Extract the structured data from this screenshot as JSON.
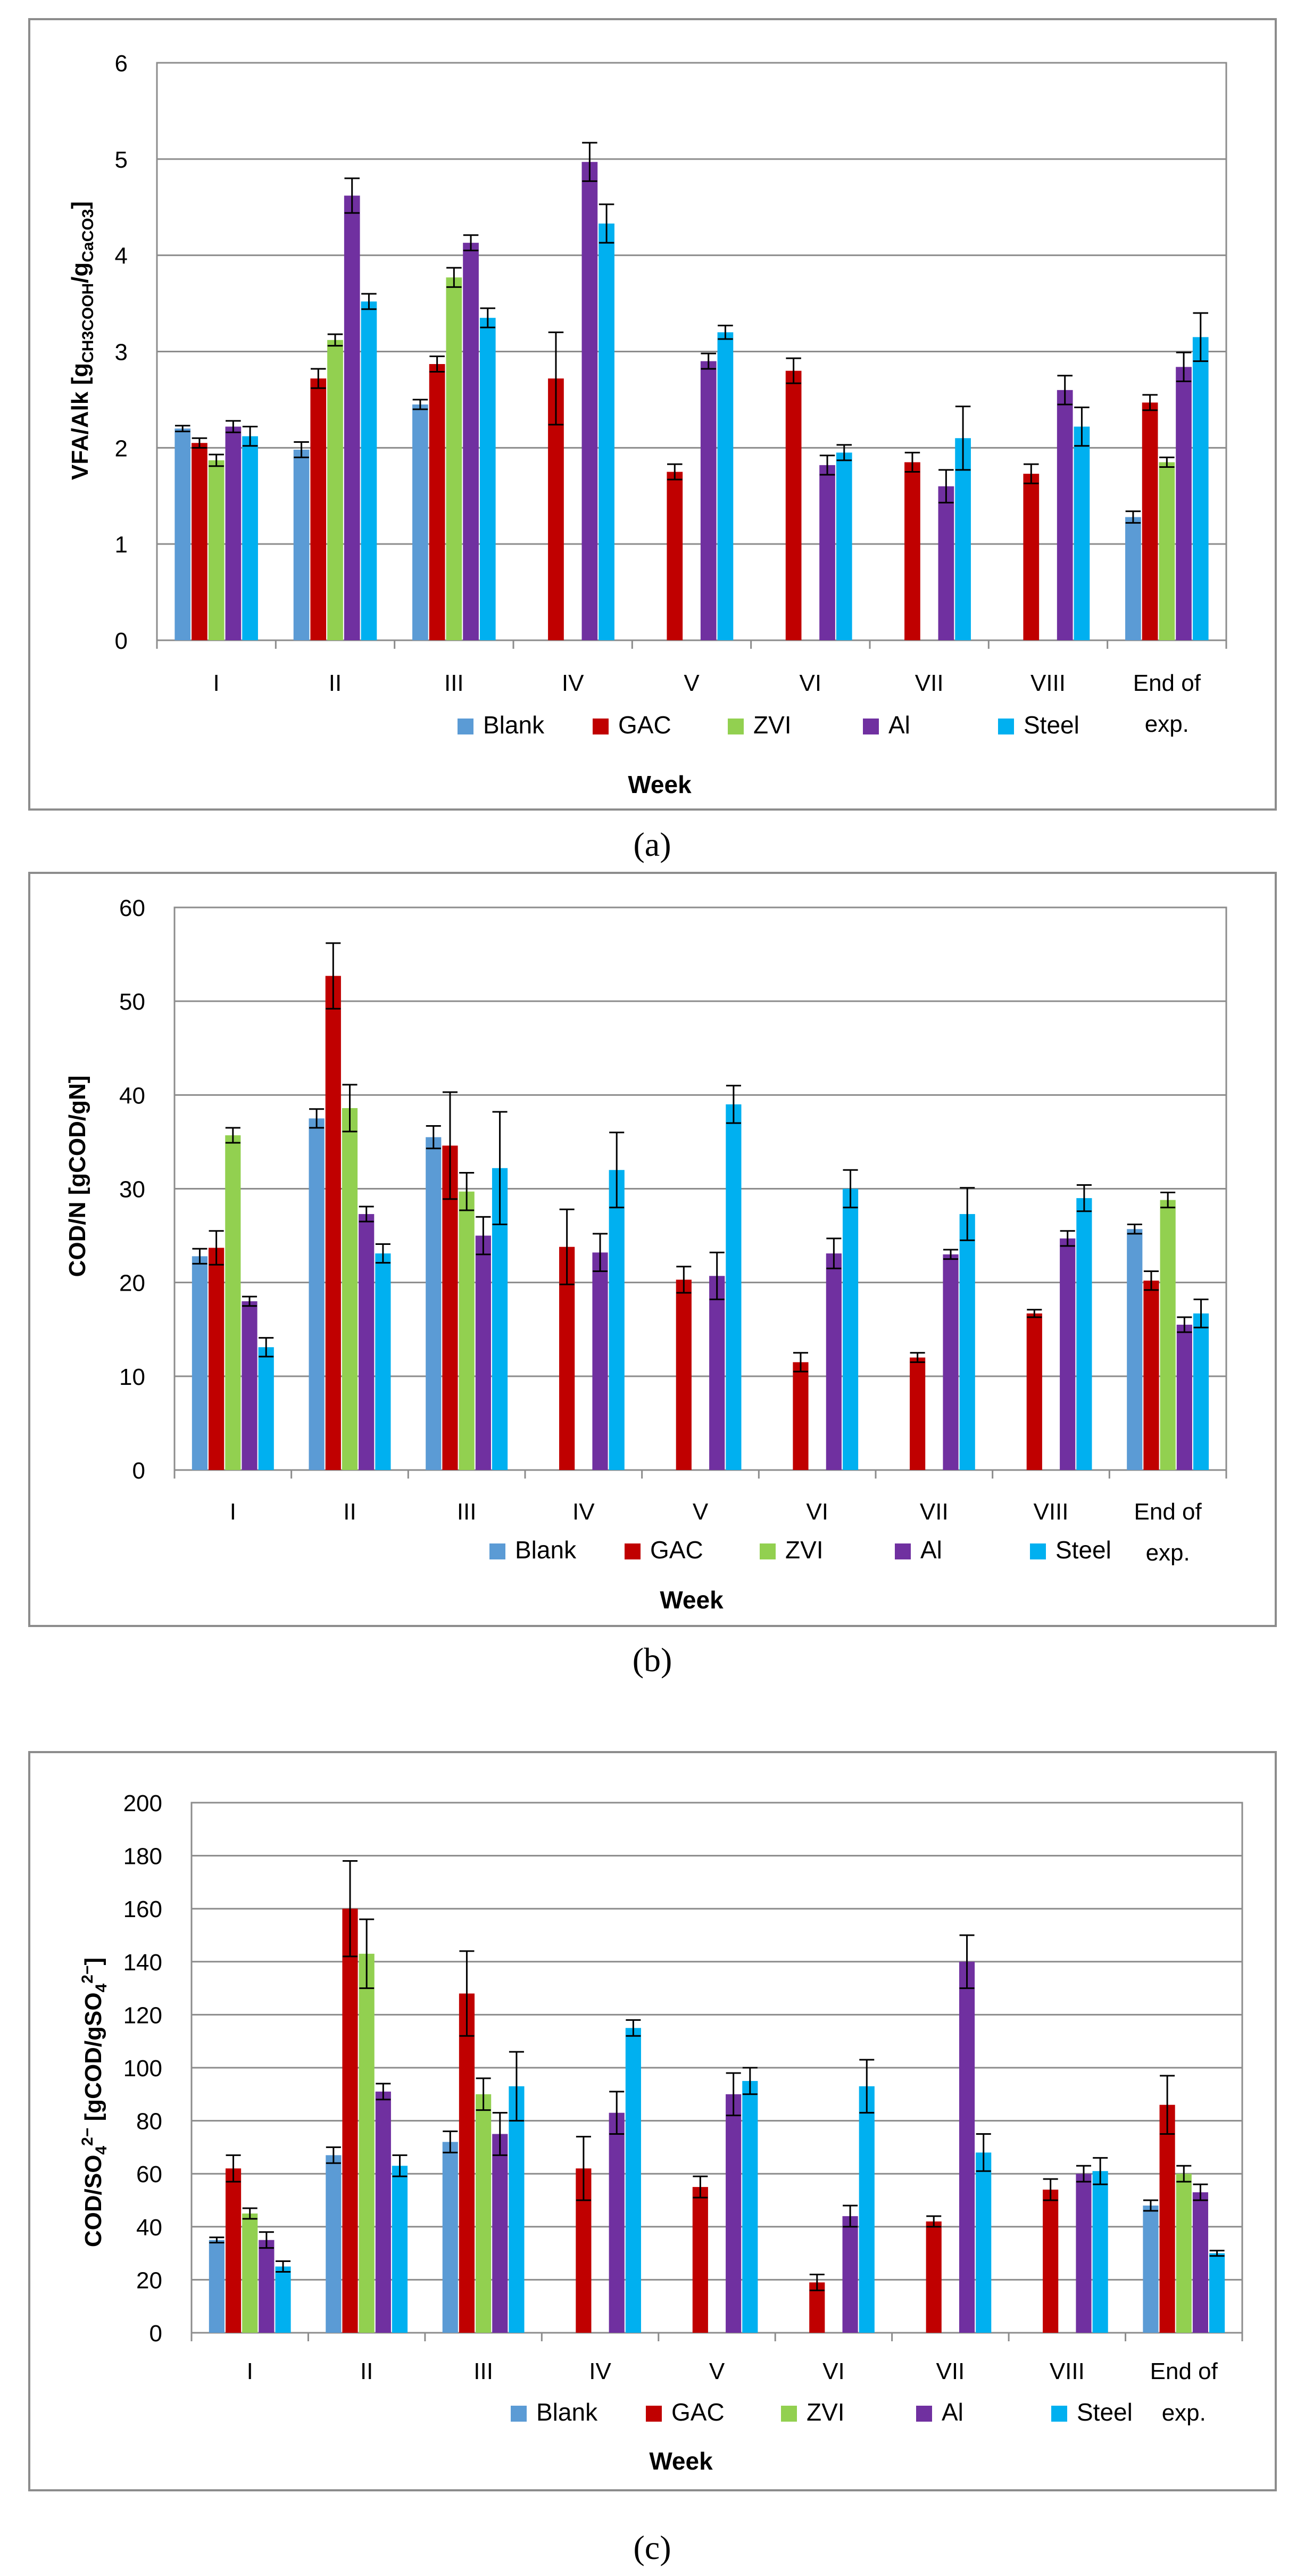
{
  "colors": {
    "Blank": "#5b9bd5",
    "GAC": "#c00000",
    "ZVI": "#92d050",
    "Al": "#7030a0",
    "Steel": "#00b0f0"
  },
  "chart_data": [
    {
      "type": "bar",
      "panel": "(a)",
      "ylabel": "VFA/Alk [gCH3COOH/gCaCO3]",
      "ylabel_parts": {
        "pre": "VFA/Alk [g",
        "sub1": "CH3COOH",
        "mid": "/g",
        "sub2": "CaCO3",
        "post": "]"
      },
      "xlabel": "Week",
      "ylim": [
        0,
        6
      ],
      "yticks": [
        0,
        1,
        2,
        3,
        4,
        5,
        6
      ],
      "grid": true,
      "legend": "bottom",
      "categories": [
        "I",
        "II",
        "III",
        "IV",
        "V",
        "VI",
        "VII",
        "VIII",
        "End of exp."
      ],
      "series": [
        {
          "name": "Blank",
          "values": [
            2.2,
            1.98,
            2.45,
            null,
            null,
            null,
            null,
            null,
            1.28
          ],
          "errors": [
            0.03,
            0.08,
            0.05,
            null,
            null,
            null,
            null,
            null,
            0.06
          ]
        },
        {
          "name": "GAC",
          "values": [
            2.05,
            2.72,
            2.87,
            2.72,
            1.75,
            2.8,
            1.85,
            1.73,
            2.47
          ],
          "errors": [
            0.05,
            0.1,
            0.08,
            0.48,
            0.08,
            0.13,
            0.1,
            0.1,
            0.08
          ]
        },
        {
          "name": "ZVI",
          "values": [
            1.87,
            3.12,
            3.77,
            null,
            null,
            null,
            null,
            null,
            1.85
          ],
          "errors": [
            0.06,
            0.06,
            0.1,
            null,
            null,
            null,
            null,
            null,
            0.05
          ]
        },
        {
          "name": "Al",
          "values": [
            2.22,
            4.62,
            4.13,
            4.97,
            2.9,
            1.82,
            1.6,
            2.6,
            2.84
          ],
          "errors": [
            0.06,
            0.18,
            0.08,
            0.2,
            0.08,
            0.1,
            0.17,
            0.15,
            0.15
          ]
        },
        {
          "name": "Steel",
          "values": [
            2.12,
            3.52,
            3.35,
            4.33,
            3.2,
            1.95,
            2.1,
            2.22,
            3.15
          ],
          "errors": [
            0.1,
            0.08,
            0.1,
            0.2,
            0.07,
            0.08,
            0.33,
            0.2,
            0.25
          ]
        }
      ]
    },
    {
      "type": "bar",
      "panel": "(b)",
      "ylabel": "COD/N [gCOD/gN]",
      "xlabel": "Week",
      "ylim": [
        0,
        60
      ],
      "yticks": [
        0,
        10,
        20,
        30,
        40,
        50,
        60
      ],
      "grid": true,
      "legend": "bottom",
      "categories": [
        "I",
        "II",
        "III",
        "IV",
        "V",
        "VI",
        "VII",
        "VIII",
        "End of exp."
      ],
      "series": [
        {
          "name": "Blank",
          "values": [
            22.8,
            37.5,
            35.5,
            null,
            null,
            null,
            null,
            null,
            25.7
          ],
          "errors": [
            0.8,
            1.0,
            1.2,
            null,
            null,
            null,
            null,
            null,
            0.5
          ]
        },
        {
          "name": "GAC",
          "values": [
            23.7,
            52.7,
            34.6,
            23.8,
            20.3,
            11.5,
            12.0,
            16.7,
            20.2
          ],
          "errors": [
            1.8,
            3.5,
            5.7,
            4.0,
            1.4,
            1.0,
            0.5,
            0.4,
            1.0
          ]
        },
        {
          "name": "ZVI",
          "values": [
            35.7,
            38.6,
            29.7,
            null,
            null,
            null,
            null,
            null,
            28.8
          ],
          "errors": [
            0.8,
            2.5,
            2.0,
            null,
            null,
            null,
            null,
            null,
            0.8
          ]
        },
        {
          "name": "Al",
          "values": [
            18.0,
            27.3,
            25.0,
            23.2,
            20.7,
            23.1,
            23.0,
            24.7,
            15.5
          ],
          "errors": [
            0.5,
            0.8,
            2.0,
            2.0,
            2.5,
            1.6,
            0.5,
            0.8,
            0.8
          ]
        },
        {
          "name": "Steel",
          "values": [
            13.1,
            23.1,
            32.2,
            32.0,
            39.0,
            30.0,
            27.3,
            29.0,
            16.7
          ],
          "errors": [
            1.0,
            1.0,
            6.0,
            4.0,
            2.0,
            2.0,
            2.8,
            1.4,
            1.5
          ]
        }
      ]
    },
    {
      "type": "bar",
      "panel": "(c)",
      "ylabel": "COD/SO4 2− [gCOD/gSO4 2−]",
      "ylabel_parts": {
        "pre": "COD/SO",
        "sub": "4",
        "sup": "2−",
        "mid": " [gCOD/gSO",
        "sub2": "4",
        "sup2": "2−",
        "post": "]"
      },
      "xlabel": "Week",
      "ylim": [
        0,
        200
      ],
      "yticks": [
        0,
        20,
        40,
        60,
        80,
        100,
        120,
        140,
        160,
        180,
        200
      ],
      "grid": true,
      "legend": "bottom",
      "categories": [
        "I",
        "II",
        "III",
        "IV",
        "V",
        "VI",
        "VII",
        "VIII",
        "End of exp."
      ],
      "series": [
        {
          "name": "Blank",
          "values": [
            35,
            67,
            72,
            null,
            null,
            null,
            null,
            null,
            48
          ],
          "errors": [
            1,
            3,
            4,
            null,
            null,
            null,
            null,
            null,
            2
          ]
        },
        {
          "name": "GAC",
          "values": [
            62,
            160,
            128,
            62,
            55,
            19,
            42,
            54,
            86
          ],
          "errors": [
            5,
            18,
            16,
            12,
            4,
            3,
            2,
            4,
            11
          ]
        },
        {
          "name": "ZVI",
          "values": [
            45,
            143,
            90,
            null,
            null,
            null,
            null,
            null,
            60
          ],
          "errors": [
            2,
            13,
            6,
            null,
            null,
            null,
            null,
            null,
            3
          ]
        },
        {
          "name": "Al",
          "values": [
            35,
            91,
            75,
            83,
            90,
            44,
            140,
            60,
            53
          ],
          "errors": [
            3,
            3,
            8,
            8,
            8,
            4,
            10,
            3,
            3
          ]
        },
        {
          "name": "Steel",
          "values": [
            25,
            63,
            93,
            115,
            95,
            93,
            68,
            61,
            30
          ],
          "errors": [
            2,
            4,
            13,
            3,
            5,
            10,
            7,
            5,
            1
          ]
        }
      ]
    }
  ]
}
